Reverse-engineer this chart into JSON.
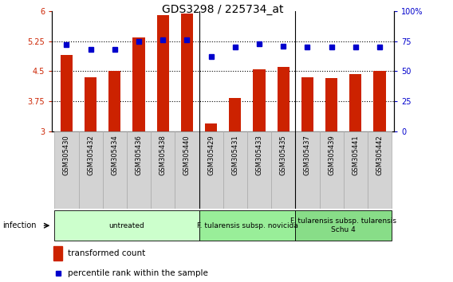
{
  "title": "GDS3298 / 225734_at",
  "samples": [
    "GSM305430",
    "GSM305432",
    "GSM305434",
    "GSM305436",
    "GSM305438",
    "GSM305440",
    "GSM305429",
    "GSM305431",
    "GSM305433",
    "GSM305435",
    "GSM305437",
    "GSM305439",
    "GSM305441",
    "GSM305442"
  ],
  "bar_values": [
    4.9,
    4.35,
    4.5,
    5.35,
    5.9,
    5.95,
    3.2,
    3.83,
    4.55,
    4.6,
    4.35,
    4.32,
    4.42,
    4.5
  ],
  "dot_values": [
    72,
    68,
    68,
    75,
    76,
    76,
    62,
    70,
    73,
    71,
    70,
    70,
    70,
    70
  ],
  "bar_color": "#cc2200",
  "dot_color": "#0000cc",
  "ylim_left": [
    3,
    6
  ],
  "ylim_right": [
    0,
    100
  ],
  "yticks_left": [
    3,
    3.75,
    4.5,
    5.25,
    6
  ],
  "yticks_right": [
    0,
    25,
    50,
    75,
    100
  ],
  "ytick_labels_left": [
    "3",
    "3.75",
    "4.5",
    "5.25",
    "6"
  ],
  "ytick_labels_right": [
    "0",
    "25",
    "50",
    "75",
    "100%"
  ],
  "hlines": [
    3.75,
    4.5,
    5.25
  ],
  "groups": [
    {
      "label": "untreated",
      "start": 0,
      "end": 5,
      "color": "#ccffcc"
    },
    {
      "label": "F. tularensis subsp. novicida",
      "start": 6,
      "end": 9,
      "color": "#99ee99"
    },
    {
      "label": "F. tularensis subsp. tularensis\nSchu 4",
      "start": 10,
      "end": 13,
      "color": "#88dd88"
    }
  ],
  "infection_label": "infection",
  "legend_bar_label": "transformed count",
  "legend_dot_label": "percentile rank within the sample",
  "plot_bg_color": "#ffffff",
  "gray_bg": "#d3d3d3",
  "bar_width": 0.5,
  "title_fontsize": 10,
  "tick_fontsize": 7,
  "label_fontsize": 7.5,
  "group_fontsize": 6.5
}
